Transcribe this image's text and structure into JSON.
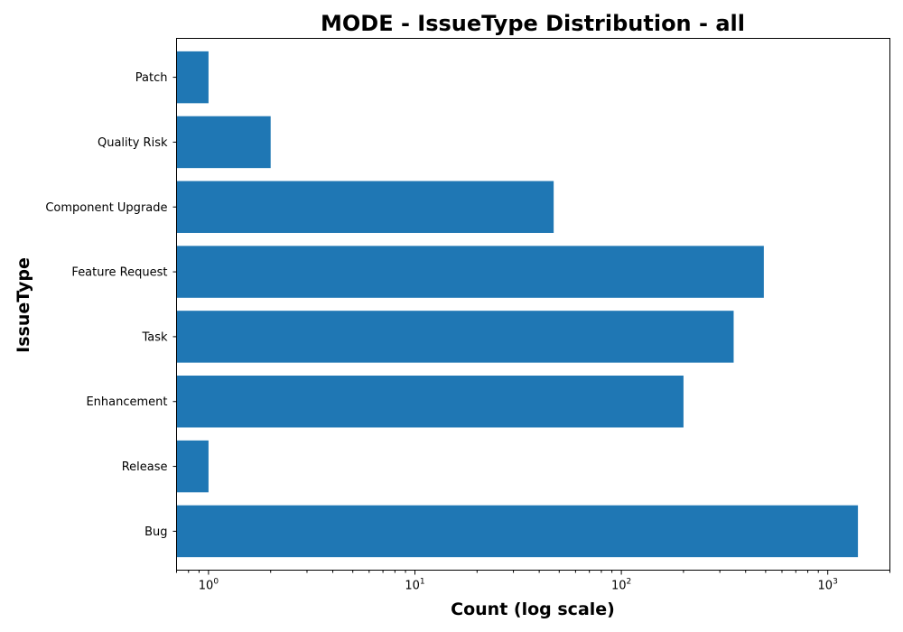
{
  "chart_data": {
    "type": "bar",
    "orientation": "horizontal",
    "title": "MODE - IssueType Distribution - all",
    "xlabel": "Count (log scale)",
    "ylabel": "IssueType",
    "x_scale": "log",
    "xlim": [
      0.7,
      2000
    ],
    "x_ticks": [
      {
        "value": 1,
        "base": "10",
        "exp": "0"
      },
      {
        "value": 10,
        "base": "10",
        "exp": "1"
      },
      {
        "value": 100,
        "base": "10",
        "exp": "2"
      },
      {
        "value": 1000,
        "base": "10",
        "exp": "3"
      }
    ],
    "categories": [
      "Bug",
      "Release",
      "Enhancement",
      "Task",
      "Feature Request",
      "Component Upgrade",
      "Quality Risk",
      "Patch"
    ],
    "values": [
      1400,
      1,
      200,
      350,
      490,
      47,
      2,
      1
    ],
    "color": "#1f77b4",
    "grid": false,
    "legend": "none"
  }
}
